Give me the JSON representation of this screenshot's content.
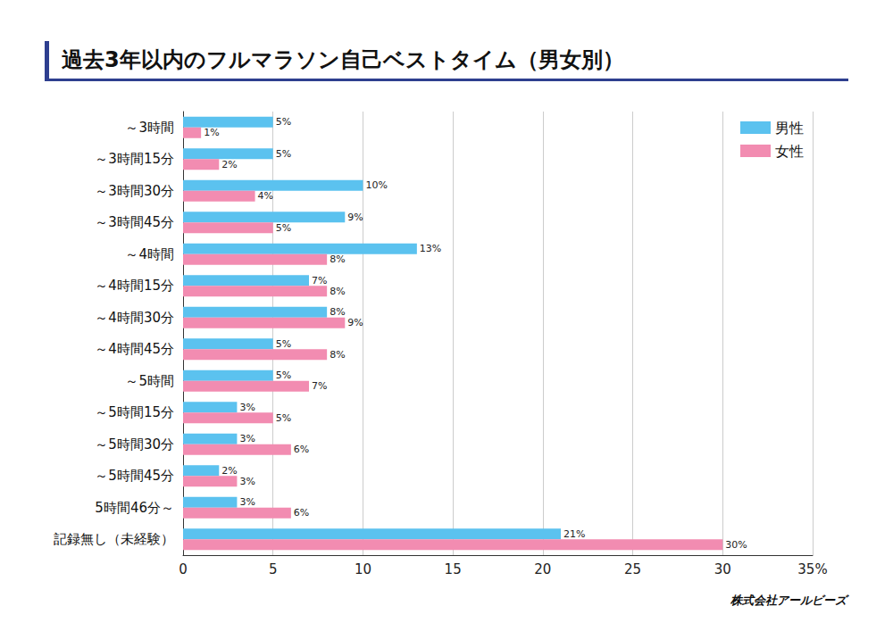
{
  "chart_data": {
    "type": "bar",
    "orientation": "horizontal",
    "title": "過去3年以内のフルマラソン自己ベストタイム（男女別）",
    "categories": [
      "～3時間",
      "～3時間15分",
      "～3時間30分",
      "～3時間45分",
      "～4時間",
      "～4時間15分",
      "～4時間30分",
      "～4時間45分",
      "～5時間",
      "～5時間15分",
      "～5時間30分",
      "～5時間45分",
      "5時間46分～",
      "記録無し（未経験）"
    ],
    "series": [
      {
        "name": "男性",
        "color": "#5bc2ef",
        "values": [
          5,
          5,
          10,
          9,
          13,
          7,
          8,
          5,
          5,
          3,
          3,
          2,
          3,
          21
        ],
        "value_labels": [
          "5%",
          "5%",
          "10%",
          "9%",
          "13%",
          "7%",
          "8%",
          "5%",
          "5%",
          "3%",
          "3%",
          "2%",
          "3%",
          "21%"
        ]
      },
      {
        "name": "女性",
        "color": "#f28cb1",
        "values": [
          1,
          2,
          4,
          5,
          8,
          8,
          9,
          8,
          7,
          5,
          6,
          3,
          6,
          30
        ],
        "value_labels": [
          "1%",
          "2%",
          "4%",
          "5%",
          "8%",
          "8%",
          "9%",
          "8%",
          "7%",
          "5%",
          "6%",
          "3%",
          "6%",
          "30%"
        ]
      }
    ],
    "xlim": [
      0,
      35
    ],
    "xticks": [
      0,
      5,
      10,
      15,
      20,
      25,
      30,
      {
        "value": 35,
        "label": "35%"
      }
    ],
    "grid": true,
    "legend": "upper right",
    "data_labels": true,
    "annotations": [
      "株式会社アールビーズ"
    ]
  }
}
